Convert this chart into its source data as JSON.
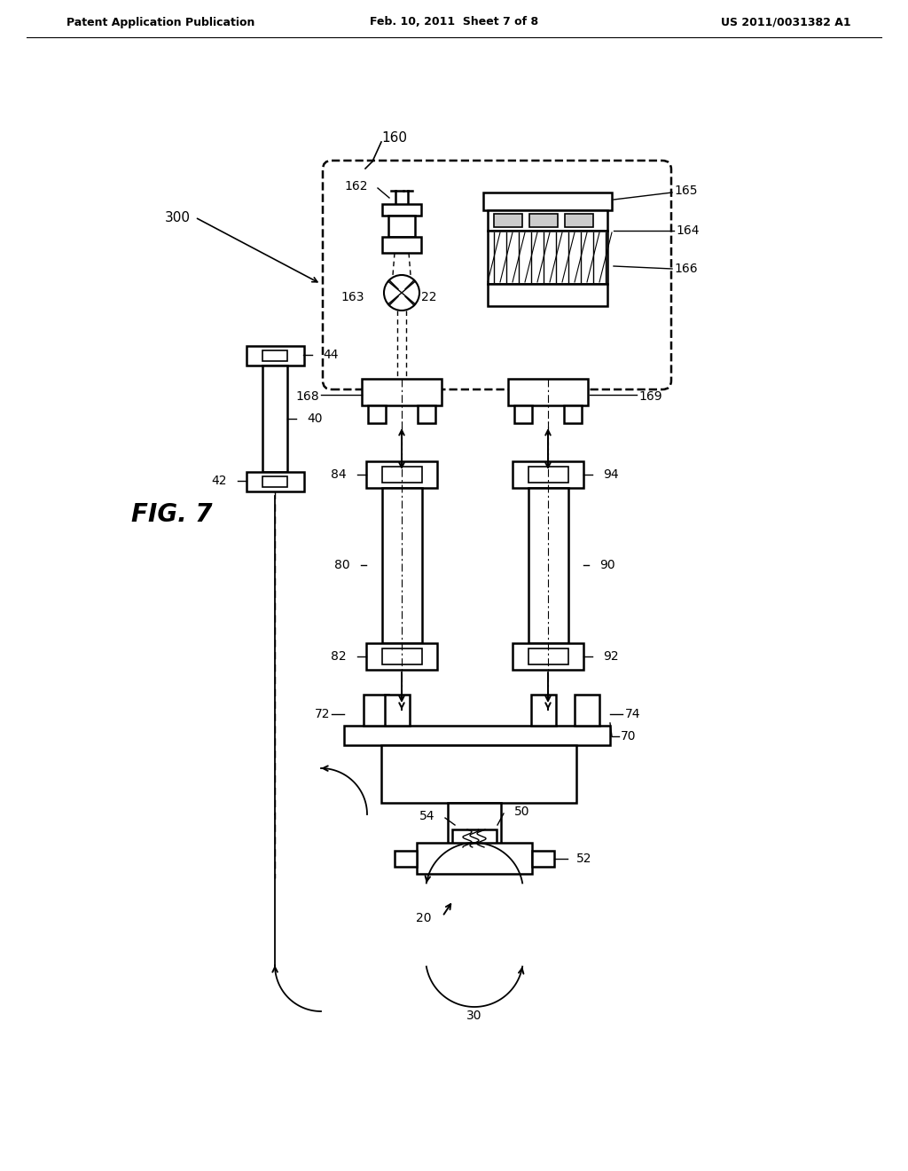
{
  "header_left": "Patent Application Publication",
  "header_center": "Feb. 10, 2011  Sheet 7 of 8",
  "header_right": "US 2011/0031382 A1",
  "fig_label": "FIG. 7",
  "bg_color": "#ffffff"
}
